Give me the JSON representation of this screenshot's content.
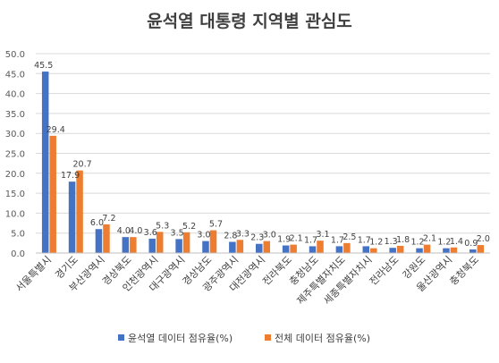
{
  "chart_data": {
    "type": "bar",
    "title": "윤석열 대통령 지역별 관심도",
    "xlabel": "",
    "ylabel": "",
    "ylim": [
      0,
      50
    ],
    "yticks": [
      "0.0",
      "5.0",
      "10.0",
      "15.0",
      "20.0",
      "25.0",
      "30.0",
      "35.0",
      "40.0",
      "45.0",
      "50.0"
    ],
    "grid": true,
    "legend_position": "bottom",
    "categories": [
      "서울특별시",
      "경기도",
      "부산광역시",
      "경상북도",
      "인천광역시",
      "대구광역시",
      "경상남도",
      "광주광역시",
      "대전광역시",
      "전라북도",
      "충청남도",
      "제주특별자치도",
      "세종특별자치시",
      "전라남도",
      "강원도",
      "울산광역시",
      "충청북도"
    ],
    "series": [
      {
        "name": "윤석열 데이터 점유율(%)",
        "color": "#4472C4",
        "values": [
          45.5,
          17.9,
          6.0,
          4.0,
          3.6,
          3.5,
          3.0,
          2.8,
          2.3,
          1.9,
          1.7,
          1.7,
          1.7,
          1.3,
          1.2,
          1.2,
          0.9
        ],
        "labels": [
          "45.5",
          "17.9",
          "6.0",
          "4.0",
          "3.6",
          "3.5",
          "3.0",
          "2.8",
          "2.3",
          "1.9",
          "1.7",
          "1.7",
          "1.7",
          "1.3",
          "1.2",
          "1.2",
          "0.9"
        ]
      },
      {
        "name": "전체 데이터 점유율(%)",
        "color": "#ED7D31",
        "values": [
          29.4,
          20.7,
          7.2,
          4.0,
          5.3,
          5.2,
          5.7,
          3.3,
          3.0,
          2.1,
          3.1,
          2.5,
          1.2,
          1.8,
          2.1,
          1.4,
          2.0
        ],
        "labels": [
          "29.4",
          "20.7",
          "7.2",
          "4.0",
          "5.3",
          "5.2",
          "5.7",
          "3.3",
          "3.0",
          "2.1",
          "3.1",
          "2.5",
          "1.2",
          "1.8",
          "2.1",
          "1.4",
          "2.0"
        ]
      }
    ]
  }
}
